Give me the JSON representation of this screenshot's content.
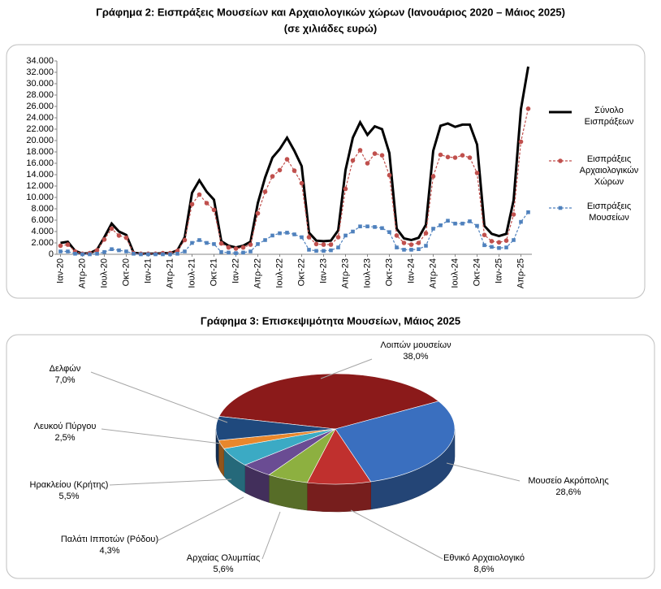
{
  "chart_data": [
    {
      "type": "line",
      "title": "Γράφημα 2: Εισπράξεις Μουσείων και Αρχαιολογικών χώρων (Ιανουάριος 2020 – Μάιος 2025)",
      "subtitle": "(σε χιλιάδες ευρώ)",
      "categories": [
        "Ιαν-20",
        null,
        null,
        "Απρ-20",
        null,
        null,
        "Ιουλ-20",
        null,
        null,
        "Οκτ-20",
        null,
        null,
        "Ιαν-21",
        null,
        null,
        "Απρ-21",
        null,
        null,
        "Ιουλ-21",
        null,
        null,
        "Οκτ-21",
        null,
        null,
        "Ιαν-22",
        null,
        null,
        "Απρ-22",
        null,
        null,
        "Ιουλ-22",
        null,
        null,
        "Οκτ-22",
        null,
        null,
        "Ιαν-23",
        null,
        null,
        "Απρ-23",
        null,
        null,
        "Ιουλ-23",
        null,
        null,
        "Οκτ-23",
        null,
        null,
        "Ιαν-24",
        null,
        null,
        "Απρ-24",
        null,
        null,
        "Ιουλ-24",
        null,
        null,
        "Οκτ-24",
        null,
        null,
        "Ιαν-25",
        null,
        null,
        "Απρ-25",
        null
      ],
      "series": [
        {
          "name": "Σύνολο Εισπράξεων",
          "color": "#000000",
          "style": "solid",
          "marker": "none",
          "values": [
            2000,
            2200,
            600,
            100,
            200,
            800,
            3000,
            5400,
            4000,
            3400,
            300,
            100,
            100,
            100,
            200,
            200,
            700,
            3000,
            10800,
            13000,
            11000,
            9600,
            2300,
            1500,
            1200,
            1500,
            2200,
            9000,
            13500,
            17000,
            18500,
            20500,
            18200,
            15500,
            3800,
            2400,
            2300,
            2400,
            4200,
            14800,
            20500,
            23200,
            21000,
            22500,
            22000,
            17800,
            4500,
            2800,
            2500,
            2900,
            5200,
            18200,
            22600,
            23000,
            22400,
            22800,
            22800,
            19300,
            5000,
            3600,
            3200,
            3600,
            9500,
            25500,
            33000
          ]
        },
        {
          "name": "Εισπράξεις Αρχαιολογικών Χώρων",
          "color": "#c0504d",
          "style": "dashed",
          "marker": "circle",
          "values": [
            1500,
            1700,
            500,
            100,
            200,
            700,
            2600,
            4500,
            3300,
            2900,
            200,
            100,
            100,
            100,
            200,
            200,
            600,
            2500,
            8800,
            10500,
            9000,
            7800,
            1900,
            1200,
            1000,
            1200,
            1700,
            7200,
            11000,
            13700,
            14800,
            16700,
            14700,
            12500,
            3000,
            1800,
            1700,
            1700,
            3000,
            11500,
            16500,
            18300,
            16000,
            17700,
            17400,
            13900,
            3300,
            2000,
            1700,
            2000,
            3700,
            13700,
            17500,
            17100,
            17000,
            17400,
            17000,
            14300,
            3400,
            2300,
            2100,
            2400,
            7000,
            19800,
            25600
          ]
        },
        {
          "name": "Εισπράξεις Μουσείων",
          "color": "#4f81bd",
          "style": "dashed",
          "marker": "square",
          "values": [
            500,
            500,
            100,
            0,
            0,
            100,
            400,
            900,
            700,
            500,
            100,
            0,
            0,
            0,
            0,
            0,
            100,
            500,
            2000,
            2500,
            2000,
            1800,
            400,
            300,
            200,
            300,
            500,
            1800,
            2500,
            3300,
            3700,
            3800,
            3500,
            3000,
            800,
            600,
            600,
            700,
            1200,
            3300,
            4000,
            4900,
            4900,
            4800,
            4600,
            3900,
            1200,
            800,
            800,
            900,
            1500,
            4500,
            5100,
            5900,
            5400,
            5400,
            5800,
            5000,
            1600,
            1300,
            1100,
            1200,
            2500,
            5700,
            7400
          ]
        }
      ],
      "ylim": [
        0,
        34000
      ],
      "yticks": [
        0,
        {
          "value": 2000,
          "label": "2.000"
        },
        {
          "value": 4000,
          "label": "4.000"
        },
        {
          "value": 6000,
          "label": "6.000"
        },
        {
          "value": 8000,
          "label": "8.000"
        },
        {
          "value": 10000,
          "label": "10.000"
        },
        {
          "value": 12000,
          "label": "12.000"
        },
        {
          "value": 14000,
          "label": "14.000"
        },
        {
          "value": 16000,
          "label": "16.000"
        },
        {
          "value": 18000,
          "label": "18.000"
        },
        {
          "value": 20000,
          "label": "20.000"
        },
        {
          "value": 22000,
          "label": "22.000"
        },
        {
          "value": 24000,
          "label": "24.000"
        },
        {
          "value": 26000,
          "label": "26.000"
        },
        {
          "value": 28000,
          "label": "28.000"
        },
        {
          "value": 30000,
          "label": "30.000"
        },
        {
          "value": 32000,
          "label": "32.000"
        },
        {
          "value": 34000,
          "label": "34.000"
        }
      ],
      "grid": false,
      "legend": "right"
    },
    {
      "type": "pie",
      "title": "Γράφημα 3: Επισκεψιμότητα Μουσείων, Μάιος 2025",
      "categories": [
        "Λοιπών μουσείων",
        "Μουσείο Ακρόπολης",
        "Εθνικό Αρχαιολογικό",
        "Αρχαίας Ολυμπίας",
        "Παλάτι Ιπποτών (Ρόδου)",
        "Ηρακλείου (Κρήτης)",
        "Λευκού Πύργου",
        "Δελφών"
      ],
      "values": [
        38.0,
        28.6,
        8.6,
        5.6,
        4.3,
        5.5,
        2.5,
        7.0
      ],
      "value_labels": [
        "38,0%",
        "28,6%",
        "8,6%",
        "5,6%",
        "4,3%",
        "5,5%",
        "2,5%",
        "7,0%"
      ],
      "colors": [
        "#8b1a1a",
        "#3a6fbf",
        "#c0302e",
        "#8db040",
        "#6a4c93",
        "#3baac4",
        "#e8872c",
        "#1f497d"
      ],
      "legend": "none"
    }
  ]
}
